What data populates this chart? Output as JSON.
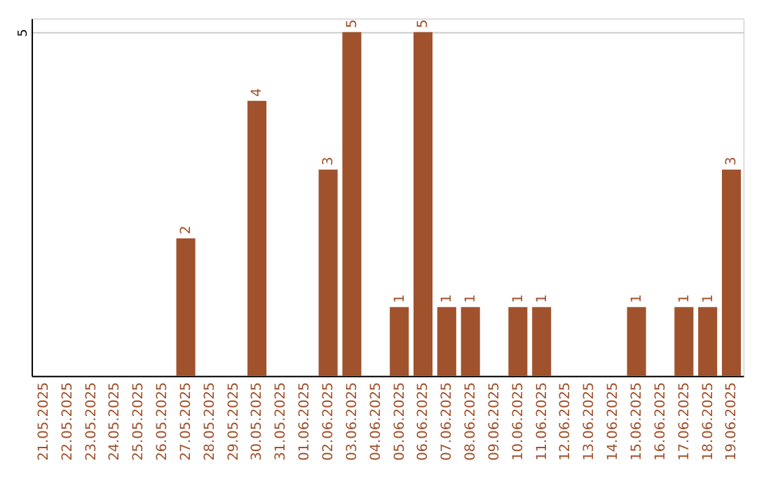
{
  "chart_data": {
    "type": "bar",
    "categories": [
      "21.05.2025",
      "22.05.2025",
      "23.05.2025",
      "24.05.2025",
      "25.05.2025",
      "26.05.2025",
      "27.05.2025",
      "28.05.2025",
      "29.05.2025",
      "30.05.2025",
      "31.05.2025",
      "01.06.2025",
      "02.06.2025",
      "03.06.2025",
      "04.06.2025",
      "05.06.2025",
      "06.06.2025",
      "07.06.2025",
      "08.06.2025",
      "09.06.2025",
      "10.06.2025",
      "11.06.2025",
      "12.06.2025",
      "13.06.2025",
      "14.06.2025",
      "15.06.2025",
      "16.06.2025",
      "17.06.2025",
      "18.06.2025",
      "19.06.2025"
    ],
    "values": [
      0,
      0,
      0,
      0,
      0,
      0,
      2,
      0,
      0,
      4,
      0,
      0,
      3,
      5,
      0,
      1,
      5,
      1,
      1,
      0,
      1,
      1,
      0,
      0,
      0,
      1,
      0,
      1,
      1,
      3
    ],
    "value_labels": [
      null,
      null,
      null,
      null,
      null,
      null,
      "2",
      null,
      null,
      "4",
      null,
      null,
      "3",
      "5",
      null,
      "1",
      "5",
      "1",
      "1",
      null,
      "1",
      "1",
      null,
      null,
      null,
      "1",
      null,
      "1",
      "1",
      "3"
    ],
    "color": "#a0522d",
    "ylim": [
      0,
      5.2
    ],
    "yticks": [
      5
    ],
    "grid": "y"
  }
}
